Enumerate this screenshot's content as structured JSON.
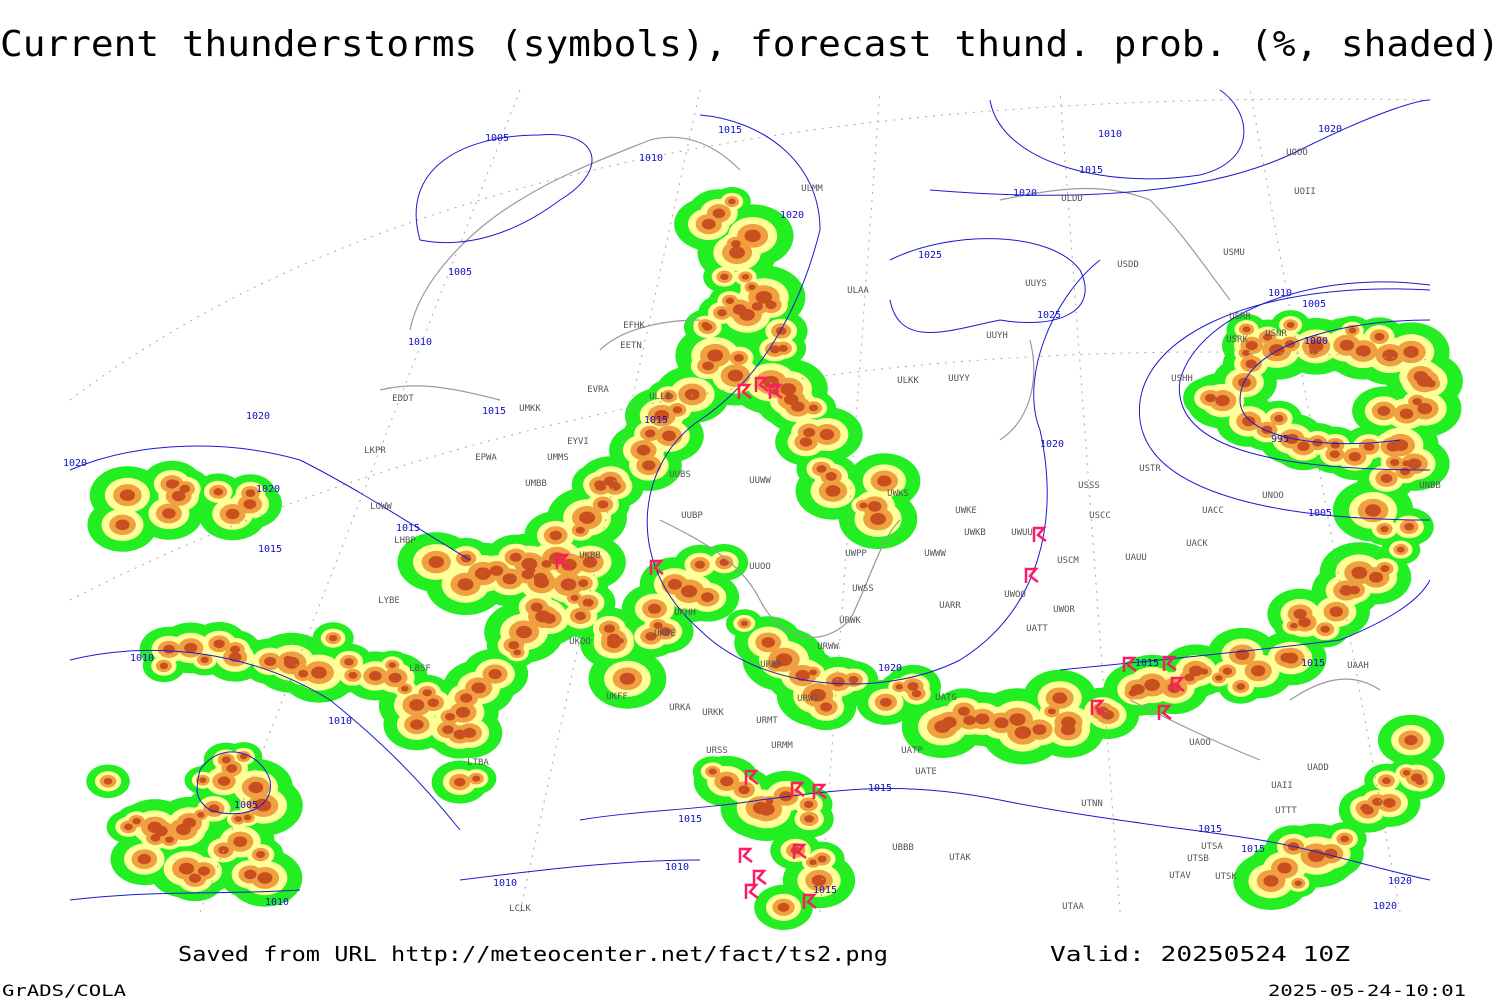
{
  "header": {
    "title": "Current thunderstorms (symbols), forecast thund. prob. (%, shaded)"
  },
  "footer": {
    "source": "Saved from URL http://meteocenter.net/fact/ts2.png",
    "valid": "Valid: 20250524 10Z",
    "credit": "GrADS/COLA",
    "timestamp": "2025-05-24-10:01"
  },
  "map": {
    "isobar_labels": [
      "1005",
      "1015",
      "1010",
      "1020",
      "1005",
      "1010",
      "1015",
      "1020",
      "1015",
      "1020",
      "1015",
      "1015",
      "1010",
      "1010",
      "1005",
      "1015",
      "1010",
      "1010",
      "1010",
      "1015",
      "1015",
      "1020",
      "1015",
      "1020",
      "1025",
      "1025",
      "1010",
      "1015",
      "1020",
      "1020",
      "1010",
      "1005",
      "1000",
      "995",
      "1005",
      "1015",
      "1015",
      "1015",
      "1020",
      "1020",
      "1020"
    ],
    "station_labels": [
      "ULMM",
      "ULAA",
      "UUYS",
      "UUYH",
      "UUYY",
      "ULKK",
      "ULDD",
      "USDD",
      "USMU",
      "UOOO",
      "UOII",
      "USRR",
      "USNR",
      "USRK",
      "USHH",
      "USTR",
      "USSS",
      "USCC",
      "UWKE",
      "UWKS",
      "UWKB",
      "UWUU",
      "USCM",
      "UAUU",
      "UWOO",
      "UWOR",
      "UATT",
      "UARR",
      "UWPP",
      "UWWW",
      "UWSS",
      "URWK",
      "URWW",
      "URRR",
      "URWI",
      "UATG",
      "UATE",
      "UATP",
      "UTNN",
      "UACC",
      "UACK",
      "UAOO",
      "UAII",
      "UADD",
      "UAAH",
      "UNOO",
      "UNBB",
      "UTTT",
      "UTSA",
      "UTSB",
      "UTAV",
      "UTSK",
      "UTAA",
      "UTAK",
      "UBBB",
      "URMM",
      "URMT",
      "URSS",
      "URKK",
      "URKA",
      "UKFF",
      "UKOO",
      "UKDE",
      "UKHH",
      "UKBB",
      "UUBS",
      "UUBP",
      "UUOO",
      "UUWW",
      "UMMS",
      "EYVI",
      "UMBB",
      "EPWA",
      "UMKK",
      "EVRA",
      "EETN",
      "EFHK",
      "ULLI",
      "LKPR",
      "LOWW",
      "LHBP",
      "LYBE",
      "LBSF",
      "LTBA",
      "LCLK",
      "EDDT"
    ]
  }
}
